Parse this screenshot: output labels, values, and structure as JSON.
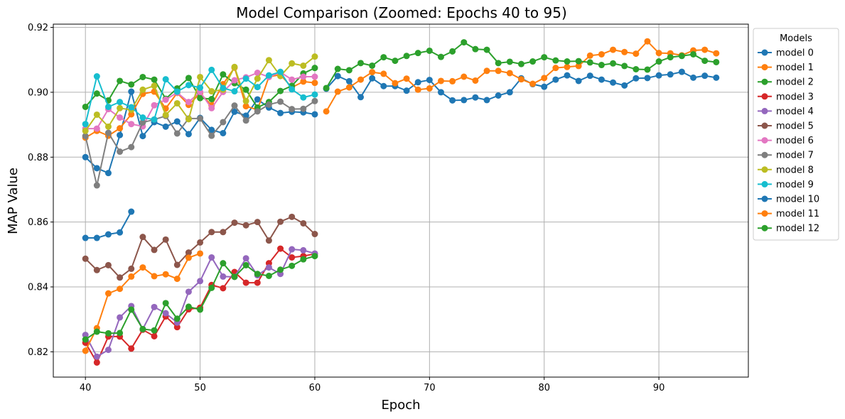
{
  "chart_data": {
    "type": "line",
    "title": "Model Comparison (Zoomed: Epochs 40 to 95)",
    "xlabel": "Epoch",
    "ylabel": "MAP Value",
    "xlim": [
      37.2,
      97.8
    ],
    "ylim": [
      0.8122,
      0.921
    ],
    "xticks": [
      40,
      50,
      60,
      70,
      80,
      90
    ],
    "yticks": [
      0.82,
      0.84,
      0.86,
      0.88,
      0.9,
      0.92
    ],
    "grid": true,
    "legend": {
      "title": "Models",
      "placement": "right"
    },
    "series": [
      {
        "name": "model 0",
        "color": "#1f77b4",
        "x": [
          40,
          41,
          42,
          43,
          44,
          45,
          46,
          47,
          48,
          49,
          50,
          51,
          52,
          53,
          54,
          55,
          56,
          57,
          58,
          59,
          60
        ],
        "y": [
          0.88,
          0.8766,
          0.8751,
          0.8868,
          0.9002,
          0.8865,
          0.8908,
          0.8894,
          0.891,
          0.8871,
          0.8921,
          0.8884,
          0.8874,
          0.894,
          0.8928,
          0.8978,
          0.8953,
          0.8936,
          0.894,
          0.8938,
          0.8932
        ]
      },
      {
        "name": "model 1",
        "color": "#ff7f0e",
        "x": [
          40,
          41,
          42,
          43,
          44,
          45,
          46,
          47,
          48,
          49,
          50,
          51,
          52,
          53,
          54,
          55,
          56,
          57,
          58,
          59,
          60
        ],
        "y": [
          0.886,
          0.8881,
          0.8866,
          0.8889,
          0.8932,
          0.8995,
          0.9002,
          0.895,
          0.8998,
          0.8961,
          0.8997,
          0.896,
          0.9025,
          0.9076,
          0.8957,
          0.8946,
          0.9048,
          0.9054,
          0.9015,
          0.9033,
          0.9029
        ]
      },
      {
        "name": "model 2",
        "color": "#2ca02c",
        "x": [
          40,
          41,
          42,
          43,
          44,
          45,
          46,
          47,
          48,
          49,
          50,
          51,
          52,
          53,
          54,
          55,
          56,
          57,
          58,
          59,
          60
        ],
        "y": [
          0.8955,
          0.8996,
          0.8975,
          0.9035,
          0.9024,
          0.9047,
          0.9039,
          0.898,
          0.9012,
          0.9044,
          0.8982,
          0.8979,
          0.9055,
          0.9028,
          0.9008,
          0.8953,
          0.897,
          0.9004,
          0.902,
          0.9058,
          0.9075
        ]
      },
      {
        "name": "model 3",
        "color": "#d62728",
        "x": [
          40,
          41,
          42,
          43,
          44,
          45,
          46,
          47,
          48,
          49,
          50,
          51,
          52,
          53,
          54,
          55,
          56,
          57,
          58,
          59,
          60
        ],
        "y": [
          0.8228,
          0.8167,
          0.8247,
          0.8247,
          0.821,
          0.8268,
          0.8248,
          0.8309,
          0.8276,
          0.8331,
          0.8336,
          0.8406,
          0.8396,
          0.8446,
          0.8413,
          0.8413,
          0.8473,
          0.8518,
          0.8491,
          0.8495,
          0.8502
        ]
      },
      {
        "name": "model 4",
        "color": "#9467bd",
        "x": [
          40,
          41,
          42,
          43,
          44,
          45,
          46,
          47,
          48,
          49,
          50,
          51,
          52,
          53,
          54,
          55,
          56,
          57,
          58,
          59,
          60
        ],
        "y": [
          0.8252,
          0.8185,
          0.8206,
          0.8306,
          0.8341,
          0.827,
          0.8338,
          0.8319,
          0.829,
          0.8385,
          0.8418,
          0.8491,
          0.8432,
          0.8431,
          0.8488,
          0.8436,
          0.846,
          0.844,
          0.8516,
          0.8513,
          0.8503
        ]
      },
      {
        "name": "model 5",
        "color": "#8c564b",
        "x": [
          40,
          41,
          42,
          43,
          44,
          45,
          46,
          47,
          48,
          49,
          50,
          51,
          52,
          53,
          54,
          55,
          56,
          57,
          58,
          59,
          60
        ],
        "y": [
          0.8487,
          0.8452,
          0.8467,
          0.8429,
          0.8456,
          0.8554,
          0.8514,
          0.8546,
          0.8468,
          0.8506,
          0.8537,
          0.8569,
          0.8569,
          0.8598,
          0.859,
          0.86,
          0.8543,
          0.8601,
          0.8616,
          0.8596,
          0.8563
        ]
      },
      {
        "name": "model 6",
        "color": "#e377c2",
        "x": [
          40,
          41,
          42,
          43,
          44,
          45,
          46,
          47,
          48,
          49,
          50,
          51,
          52,
          53,
          54,
          55,
          56,
          57,
          58,
          59,
          60
        ],
        "y": [
          0.8888,
          0.8888,
          0.8948,
          0.8922,
          0.8902,
          0.8895,
          0.896,
          0.8977,
          0.8999,
          0.897,
          0.9001,
          0.8951,
          0.9001,
          0.9037,
          0.9046,
          0.906,
          0.9047,
          0.9062,
          0.9039,
          0.9048,
          0.9048
        ]
      },
      {
        "name": "model 7",
        "color": "#7f7f7f",
        "x": [
          40,
          41,
          42,
          43,
          44,
          45,
          46,
          47,
          48,
          49,
          50,
          51,
          52,
          53,
          54,
          55,
          56,
          57,
          58,
          59,
          60
        ],
        "y": [
          0.8865,
          0.8713,
          0.8875,
          0.8817,
          0.8831,
          0.8907,
          0.8916,
          0.8927,
          0.8873,
          0.8919,
          0.8919,
          0.8866,
          0.8908,
          0.8959,
          0.8913,
          0.8941,
          0.8962,
          0.8971,
          0.8948,
          0.8949,
          0.8973
        ]
      },
      {
        "name": "model 8",
        "color": "#bcbd22",
        "x": [
          40,
          41,
          42,
          43,
          44,
          45,
          46,
          47,
          48,
          49,
          50,
          51,
          52,
          53,
          54,
          55,
          56,
          57,
          58,
          59,
          60
        ],
        "y": [
          0.8881,
          0.8931,
          0.8894,
          0.8951,
          0.8946,
          0.9008,
          0.902,
          0.893,
          0.8966,
          0.8917,
          0.9047,
          0.9003,
          0.9008,
          0.9078,
          0.8973,
          0.9042,
          0.9099,
          0.905,
          0.9089,
          0.9082,
          0.911
        ]
      },
      {
        "name": "model 9",
        "color": "#17becf",
        "x": [
          40,
          41,
          42,
          43,
          44,
          45,
          46,
          47,
          48,
          49,
          50,
          51,
          52,
          53,
          54,
          55,
          56,
          57,
          58,
          59,
          60
        ],
        "y": [
          0.8902,
          0.9049,
          0.8955,
          0.897,
          0.8954,
          0.8922,
          0.8916,
          0.904,
          0.9002,
          0.9022,
          0.9014,
          0.9069,
          0.9013,
          0.9003,
          0.9042,
          0.9016,
          0.9052,
          0.9063,
          0.9009,
          0.8984,
          0.8993
        ]
      },
      {
        "name": "model 10",
        "color": "#1f77b4",
        "x": [
          40,
          41,
          42,
          43,
          44
        ],
        "y": [
          0.8551,
          0.8551,
          0.8562,
          0.8568,
          0.8632
        ]
      },
      {
        "name": "model 11",
        "color": "#ff7f0e",
        "x": [
          40,
          41,
          42,
          43,
          44,
          45,
          46,
          47,
          48,
          49,
          50
        ],
        "y": [
          0.8203,
          0.8273,
          0.838,
          0.8394,
          0.8432,
          0.846,
          0.8433,
          0.8439,
          0.8425,
          0.849,
          0.8503
        ]
      },
      {
        "name": "model 12",
        "color": "#2ca02c",
        "x": [
          40,
          41,
          42,
          43,
          44,
          45,
          46,
          47,
          48,
          49,
          50,
          51,
          52,
          53,
          54,
          55,
          56,
          57,
          58,
          59,
          60
        ],
        "y": [
          0.8238,
          0.8262,
          0.8257,
          0.8258,
          0.833,
          0.827,
          0.8266,
          0.835,
          0.8302,
          0.8339,
          0.833,
          0.8397,
          0.8473,
          0.8431,
          0.8467,
          0.844,
          0.8434,
          0.8453,
          0.8465,
          0.8485,
          0.8495
        ]
      },
      {
        "name": "",
        "color": "#1f77b4",
        "x": [
          61,
          62,
          63,
          64,
          65,
          66,
          67,
          68,
          69,
          70,
          71,
          72,
          73,
          74,
          75,
          76,
          77,
          78,
          79,
          80,
          81,
          82,
          83,
          84,
          85,
          86,
          87,
          88,
          89,
          90,
          91,
          92,
          93,
          94,
          95
        ],
        "y": [
          0.9011,
          0.905,
          0.9034,
          0.8985,
          0.9043,
          0.9019,
          0.9019,
          0.9005,
          0.9031,
          0.9038,
          0.9,
          0.8975,
          0.8976,
          0.8984,
          0.8976,
          0.899,
          0.9,
          0.9043,
          0.9025,
          0.9017,
          0.9039,
          0.9052,
          0.9035,
          0.9051,
          0.9039,
          0.903,
          0.9021,
          0.9043,
          0.9044,
          0.9052,
          0.9055,
          0.9063,
          0.9045,
          0.9051,
          0.9045
        ]
      },
      {
        "name": "",
        "color": "#ff7f0e",
        "x": [
          61,
          62,
          63,
          64,
          65,
          66,
          67,
          68,
          69,
          70,
          71,
          72,
          73,
          74,
          75,
          76,
          77,
          78,
          79,
          80,
          81,
          82,
          83,
          84,
          85,
          86,
          87,
          88,
          89,
          90,
          91,
          92,
          93,
          94,
          95
        ],
        "y": [
          0.8941,
          0.9002,
          0.9015,
          0.9039,
          0.9062,
          0.9057,
          0.9028,
          0.9042,
          0.9008,
          0.9012,
          0.9035,
          0.9034,
          0.9048,
          0.9036,
          0.9066,
          0.9066,
          0.9059,
          0.904,
          0.9026,
          0.9044,
          0.9075,
          0.9078,
          0.9081,
          0.9113,
          0.9117,
          0.9131,
          0.9124,
          0.9119,
          0.9157,
          0.9121,
          0.912,
          0.9114,
          0.9129,
          0.9131,
          0.912
        ]
      },
      {
        "name": "",
        "color": "#2ca02c",
        "x": [
          61,
          62,
          63,
          64,
          65,
          66,
          67,
          68,
          69,
          70,
          71,
          72,
          73,
          74,
          75,
          76,
          77,
          78,
          79,
          80,
          81,
          82,
          83,
          84,
          85,
          86,
          87,
          88,
          89,
          90,
          91,
          92,
          93,
          94,
          95
        ],
        "y": [
          0.9013,
          0.9072,
          0.9068,
          0.909,
          0.9082,
          0.9108,
          0.9097,
          0.9112,
          0.9121,
          0.9128,
          0.9109,
          0.9126,
          0.9154,
          0.9133,
          0.9131,
          0.909,
          0.9094,
          0.9087,
          0.9095,
          0.9108,
          0.9098,
          0.9095,
          0.9096,
          0.9092,
          0.9084,
          0.9089,
          0.9081,
          0.9071,
          0.907,
          0.9095,
          0.9108,
          0.9112,
          0.9117,
          0.9097,
          0.9093
        ]
      }
    ]
  }
}
